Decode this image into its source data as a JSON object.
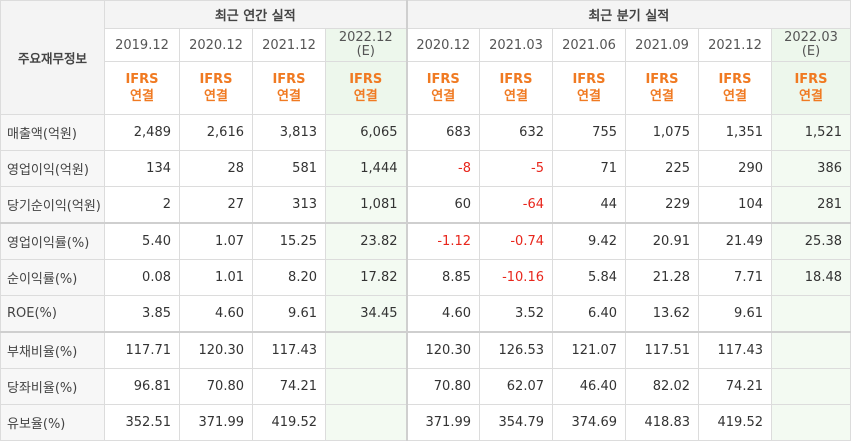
{
  "header": {
    "corner_label": "주요재무정보",
    "annual_title": "최근 연간 실적",
    "quarterly_title": "최근 분기 실적"
  },
  "annual_periods": [
    {
      "label": "2019.12",
      "est": ""
    },
    {
      "label": "2020.12",
      "est": ""
    },
    {
      "label": "2021.12",
      "est": ""
    },
    {
      "label": "2022.12",
      "est": "(E)"
    }
  ],
  "quarterly_periods": [
    {
      "label": "2020.12",
      "est": ""
    },
    {
      "label": "2021.03",
      "est": ""
    },
    {
      "label": "2021.06",
      "est": ""
    },
    {
      "label": "2021.09",
      "est": ""
    },
    {
      "label": "2021.12",
      "est": ""
    },
    {
      "label": "2022.03",
      "est": "(E)"
    }
  ],
  "ifrs": {
    "line1": "IFRS",
    "line2": "연결"
  },
  "colors": {
    "negative": "#e8261c",
    "ifrs": "#f07a22",
    "estimate_bg": "#edf7ec"
  },
  "rows": [
    {
      "label": "매출액(억원)",
      "annual": [
        "2,489",
        "2,616",
        "3,813",
        "6,065"
      ],
      "quarterly": [
        "683",
        "632",
        "755",
        "1,075",
        "1,351",
        "1,521"
      ]
    },
    {
      "label": "영업이익(억원)",
      "annual": [
        "134",
        "28",
        "581",
        "1,444"
      ],
      "quarterly": [
        "-8",
        "-5",
        "71",
        "225",
        "290",
        "386"
      ]
    },
    {
      "label": "당기순이익(억원)",
      "annual": [
        "2",
        "27",
        "313",
        "1,081"
      ],
      "quarterly": [
        "60",
        "-64",
        "44",
        "229",
        "104",
        "281"
      ]
    },
    {
      "label": "영업이익률(%)",
      "annual": [
        "5.40",
        "1.07",
        "15.25",
        "23.82"
      ],
      "quarterly": [
        "-1.12",
        "-0.74",
        "9.42",
        "20.91",
        "21.49",
        "25.38"
      ]
    },
    {
      "label": "순이익률(%)",
      "annual": [
        "0.08",
        "1.01",
        "8.20",
        "17.82"
      ],
      "quarterly": [
        "8.85",
        "-10.16",
        "5.84",
        "21.28",
        "7.71",
        "18.48"
      ]
    },
    {
      "label": "ROE(%)",
      "annual": [
        "3.85",
        "4.60",
        "9.61",
        "34.45"
      ],
      "quarterly": [
        "4.60",
        "3.52",
        "6.40",
        "13.62",
        "9.61",
        ""
      ]
    },
    {
      "label": "부채비율(%)",
      "annual": [
        "117.71",
        "120.30",
        "117.43",
        ""
      ],
      "quarterly": [
        "120.30",
        "126.53",
        "121.07",
        "117.51",
        "117.43",
        ""
      ]
    },
    {
      "label": "당좌비율(%)",
      "annual": [
        "96.81",
        "70.80",
        "74.21",
        ""
      ],
      "quarterly": [
        "70.80",
        "62.07",
        "46.40",
        "82.02",
        "74.21",
        ""
      ]
    },
    {
      "label": "유보율(%)",
      "annual": [
        "352.51",
        "371.99",
        "419.52",
        ""
      ],
      "quarterly": [
        "371.99",
        "354.79",
        "374.69",
        "418.83",
        "419.52",
        ""
      ]
    }
  ]
}
